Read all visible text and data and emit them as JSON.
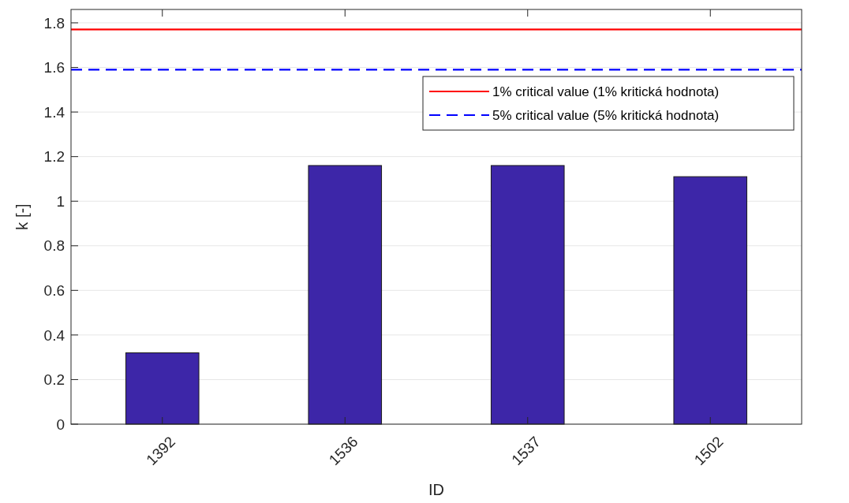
{
  "chart_data": {
    "type": "bar",
    "xlabel": "ID",
    "ylabel": "k [-]",
    "categories": [
      "1392",
      "1536",
      "1537",
      "1502"
    ],
    "values": [
      0.32,
      1.16,
      1.16,
      1.11
    ],
    "color": "#3d26a8",
    "ylim": [
      0,
      1.86
    ],
    "yticks": [
      0,
      0.2,
      0.4,
      0.6,
      0.8,
      1,
      1.2,
      1.4,
      1.6,
      1.8
    ],
    "grid": "y",
    "legend": "top right",
    "ref_lines": [
      {
        "axis": "y",
        "value": 1.77,
        "label": "1% critical value (1% kritická hodnota)",
        "color": "#ff0000",
        "line_style": "solid"
      },
      {
        "axis": "y",
        "value": 1.59,
        "label": "5% critical value (5% kritická hodnota)",
        "color": "#0000ff",
        "line_style": "dashed"
      }
    ]
  }
}
